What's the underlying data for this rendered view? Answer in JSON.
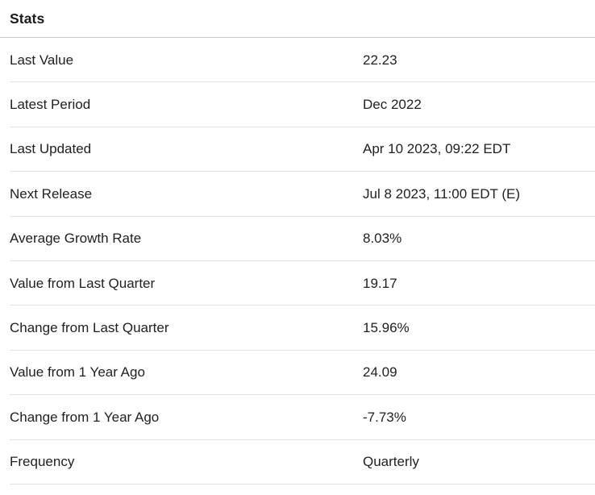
{
  "header": {
    "title": "Stats"
  },
  "stats_table": {
    "rows": [
      {
        "label": "Last Value",
        "value": "22.23"
      },
      {
        "label": "Latest Period",
        "value": "Dec 2022"
      },
      {
        "label": "Last Updated",
        "value": "Apr 10 2023, 09:22 EDT"
      },
      {
        "label": "Next Release",
        "value": "Jul 8 2023, 11:00 EDT (E)"
      },
      {
        "label": "Average Growth Rate",
        "value": "8.03%"
      },
      {
        "label": "Value from Last Quarter",
        "value": "19.17"
      },
      {
        "label": "Change from Last Quarter",
        "value": "15.96%"
      },
      {
        "label": "Value from 1 Year Ago",
        "value": "24.09"
      },
      {
        "label": "Change from 1 Year Ago",
        "value": "-7.73%"
      },
      {
        "label": "Frequency",
        "value": "Quarterly"
      }
    ]
  },
  "colors": {
    "background": "#ffffff",
    "text": "#212121",
    "header_divider": "#c9c9c9",
    "row_divider": "#e2e2e2"
  }
}
